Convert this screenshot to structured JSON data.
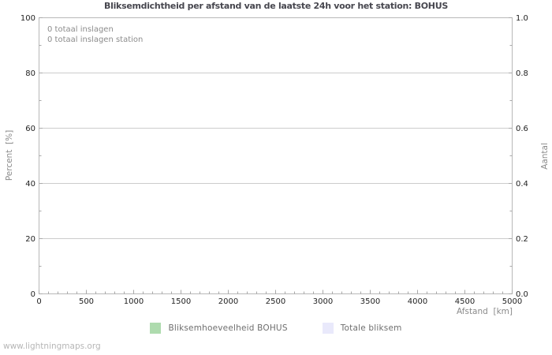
{
  "watermark": "www.lightningmaps.org",
  "colors": {
    "background": "#ffffff",
    "frame": "#b8b8b8",
    "gridline": "#cccccc",
    "tick": "#a9a9a9",
    "tick_label": "#222222",
    "title": "#47474f",
    "axis_label": "#8a8a8a",
    "annotation": "#8c8c8c",
    "legend_label": "#6e6e6e",
    "watermark": "#b6b6b6"
  },
  "chart_data": {
    "type": "bar",
    "title": "Bliksemdichtheid per afstand van de laatste 24h voor het station: BOHUS",
    "annotations": [
      "0 totaal inslagen",
      "0 totaal inslagen station"
    ],
    "x_axis": {
      "label": "Afstand  [km]",
      "min": 0,
      "max": 5000,
      "major_step": 500,
      "minor_step": 100,
      "tick_labels": [
        "0",
        "500",
        "1000",
        "1500",
        "2000",
        "2500",
        "3000",
        "3500",
        "4000",
        "4500",
        "5000"
      ]
    },
    "y_left": {
      "label": "Percent  [%]",
      "min": 0,
      "max": 100,
      "major_step": 20,
      "minor_step": 10,
      "tick_labels": [
        "0",
        "20",
        "40",
        "60",
        "80",
        "100"
      ]
    },
    "y_right": {
      "label": "Aantal",
      "min": 0.0,
      "max": 1.0,
      "major_step": 0.2,
      "minor_step": 0.1,
      "tick_labels": [
        "0.0",
        "0.2",
        "0.4",
        "0.6",
        "0.8",
        "1.0"
      ]
    },
    "grid": "horizontal-major",
    "legend_position": "bottom-center",
    "series": [
      {
        "name": "Bliksemhoeveelheid BOHUS",
        "color": "#aedbae",
        "values": []
      },
      {
        "name": "Totale bliksem",
        "color": "#e9e9fb",
        "values": []
      }
    ]
  }
}
